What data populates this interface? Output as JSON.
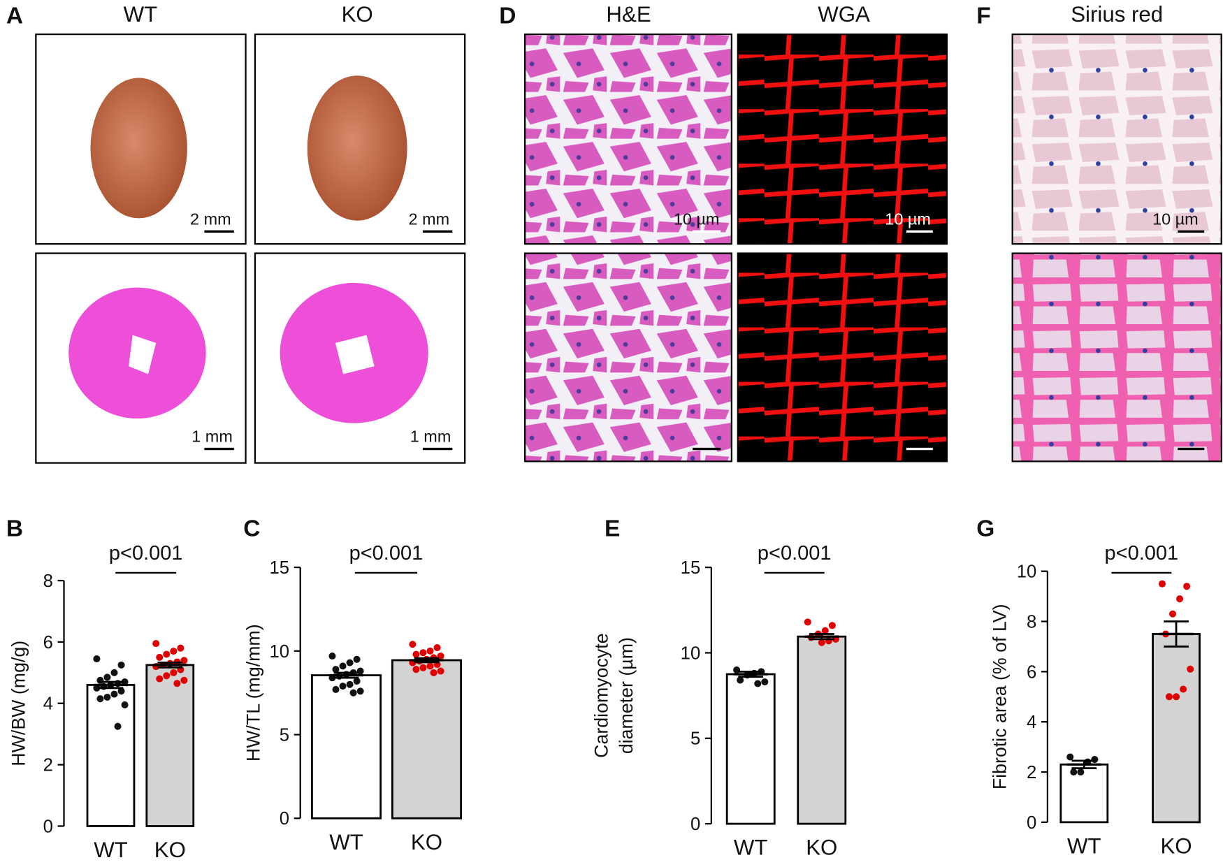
{
  "image_panels": {
    "letters": [
      "A",
      "D",
      "F"
    ],
    "column_titles": [
      "WT",
      "KO",
      "H&E",
      "WGA",
      "Sirius red"
    ],
    "scale_labels": [
      "2 mm",
      "2 mm",
      "1 mm",
      "1 mm",
      "10 µm",
      "10 µm",
      "10 µm"
    ]
  },
  "chart_data": [
    {
      "type": "bar",
      "panel": "B",
      "y_label": [
        "HW/BW (mg/g)"
      ],
      "annotation": "p<0.001",
      "categories": [
        "WT",
        "KO"
      ],
      "values": [
        4.6,
        5.25
      ],
      "errors": [
        0.1,
        0.08
      ],
      "bar_colors": [
        "#ffffff",
        "#d3d3d3"
      ],
      "point_colors": [
        "#111111",
        "#e00000"
      ],
      "ylim": [
        0,
        8
      ],
      "yticks": [
        0,
        2,
        4,
        6,
        8
      ],
      "points": [
        [
          5.45,
          5.25,
          5.0,
          4.85,
          4.75,
          4.7,
          4.65,
          4.6,
          4.55,
          4.5,
          4.4,
          4.3,
          4.2,
          4.15,
          3.95,
          3.25
        ],
        [
          5.95,
          5.8,
          5.7,
          5.6,
          5.5,
          5.4,
          5.35,
          5.3,
          5.25,
          5.2,
          5.1,
          5.0,
          4.9,
          4.8,
          4.75,
          4.65
        ]
      ]
    },
    {
      "type": "bar",
      "panel": "C",
      "y_label": [
        "HW/TL (mg/mm)"
      ],
      "annotation": "p<0.001",
      "categories": [
        "WT",
        "KO"
      ],
      "values": [
        8.55,
        9.45
      ],
      "errors": [
        0.15,
        0.12
      ],
      "bar_colors": [
        "#ffffff",
        "#d3d3d3"
      ],
      "point_colors": [
        "#111111",
        "#e00000"
      ],
      "ylim": [
        0,
        15
      ],
      "yticks": [
        0,
        5,
        10,
        15
      ],
      "points": [
        [
          9.7,
          9.5,
          9.3,
          9.1,
          8.9,
          8.8,
          8.7,
          8.6,
          8.5,
          8.4,
          8.2,
          8.0,
          7.9,
          7.7,
          7.6,
          7.5
        ],
        [
          10.4,
          10.2,
          10.0,
          9.9,
          9.8,
          9.7,
          9.6,
          9.5,
          9.4,
          9.3,
          9.2,
          9.1,
          9.0,
          8.9,
          8.8,
          8.7
        ]
      ]
    },
    {
      "type": "bar",
      "panel": "E",
      "y_label": [
        "Cardiomyocyte",
        "diameter (µm)"
      ],
      "annotation": "p<0.001",
      "categories": [
        "WT",
        "KO"
      ],
      "values": [
        8.75,
        10.95
      ],
      "errors": [
        0.15,
        0.15
      ],
      "bar_colors": [
        "#ffffff",
        "#d3d3d3"
      ],
      "point_colors": [
        "#111111",
        "#e00000"
      ],
      "ylim": [
        0,
        15
      ],
      "yticks": [
        0,
        5,
        10,
        15
      ],
      "points": [
        [
          9.0,
          8.9,
          8.8,
          8.7,
          8.4,
          8.3,
          8.2
        ],
        [
          11.8,
          11.6,
          11.3,
          11.1,
          10.9,
          10.8,
          10.7,
          10.6
        ]
      ]
    },
    {
      "type": "bar",
      "panel": "G",
      "y_label": [
        "Fibrotic area (% of LV)"
      ],
      "annotation": "p<0.001",
      "categories": [
        "WT",
        "KO"
      ],
      "values": [
        2.3,
        7.5
      ],
      "errors": [
        0.15,
        0.5
      ],
      "bar_colors": [
        "#ffffff",
        "#d3d3d3"
      ],
      "point_colors": [
        "#111111",
        "#e00000"
      ],
      "ylim": [
        0,
        10
      ],
      "yticks": [
        0,
        2,
        4,
        6,
        8,
        10
      ],
      "points": [
        [
          2.6,
          2.5,
          2.4,
          2.0,
          2.0
        ],
        [
          9.5,
          9.4,
          8.9,
          8.3,
          7.5,
          6.1,
          5.3,
          5.0,
          5.0
        ]
      ]
    }
  ]
}
